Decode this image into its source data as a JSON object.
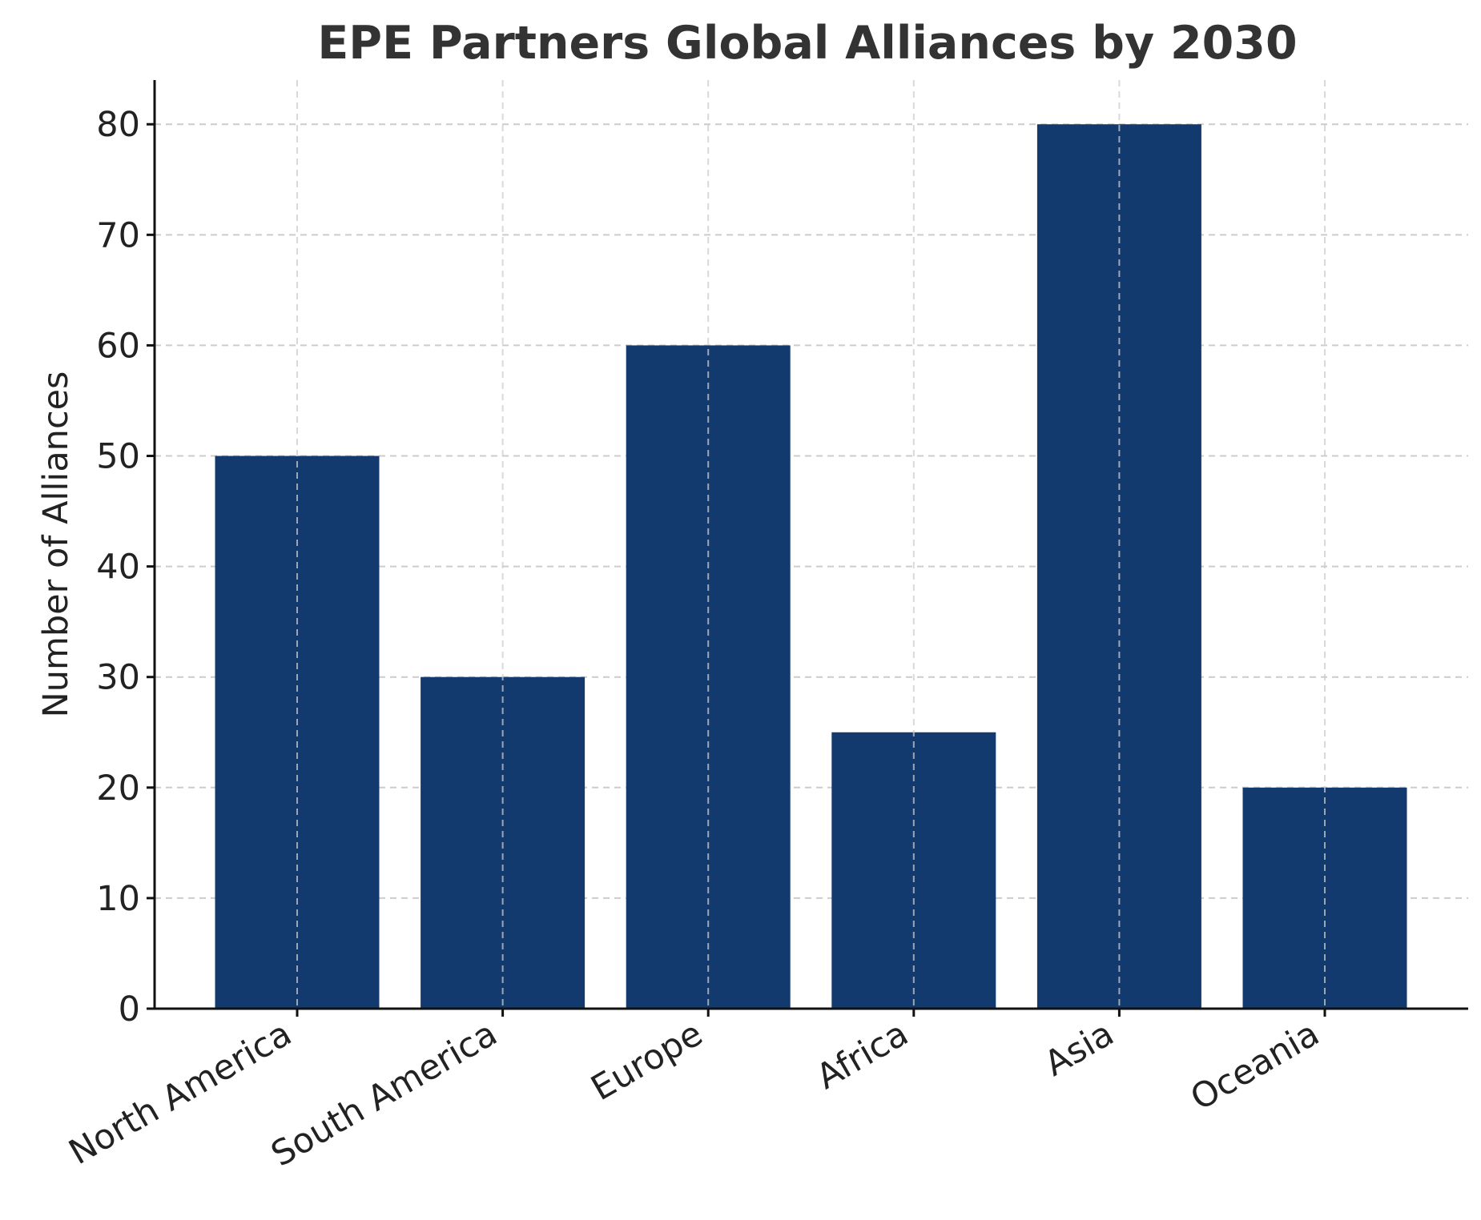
{
  "chart_data": {
    "type": "bar",
    "title": "EPE Partners Global Alliances by 2030",
    "xlabel": "",
    "ylabel": "Number of Alliances",
    "categories": [
      "North America",
      "South America",
      "Europe",
      "Africa",
      "Asia",
      "Oceania"
    ],
    "values": [
      50,
      30,
      60,
      25,
      80,
      20
    ],
    "ylim": [
      0,
      84
    ],
    "yticks": [
      0,
      10,
      20,
      30,
      40,
      50,
      60,
      70,
      80
    ],
    "grid": true,
    "legend": "none",
    "bar_color": "#133a6e",
    "grid_color": "#cccccc",
    "axis_color": "#111111"
  }
}
